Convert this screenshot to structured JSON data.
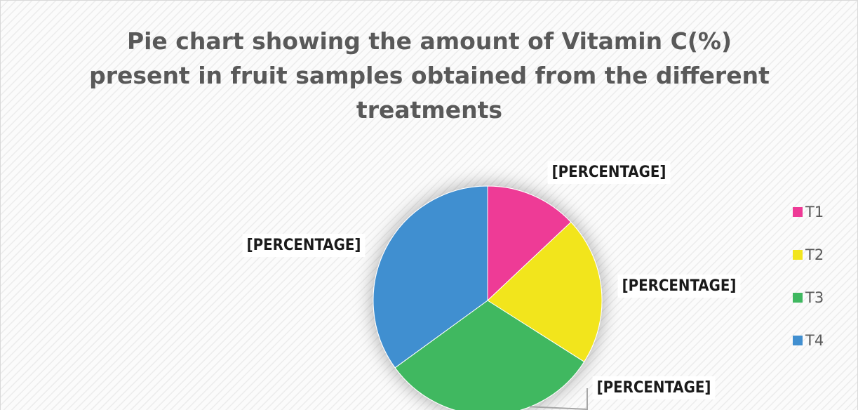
{
  "chart_data": {
    "type": "pie",
    "title": "Pie chart showing the amount of Vitamin C(%) present in fruit samples obtained from the different treatments",
    "categories": [
      "T1",
      "T2",
      "T3",
      "T4"
    ],
    "values": [
      13,
      21,
      31,
      35
    ],
    "value_labels": [
      "[PERCENTAGE]",
      "[PERCENTAGE]",
      "[PERCENTAGE]",
      "[PERCENTAGE]"
    ],
    "colors": [
      "#ee3a96",
      "#f2e51d",
      "#3fb860",
      "#418fd0"
    ],
    "legend": "right"
  }
}
